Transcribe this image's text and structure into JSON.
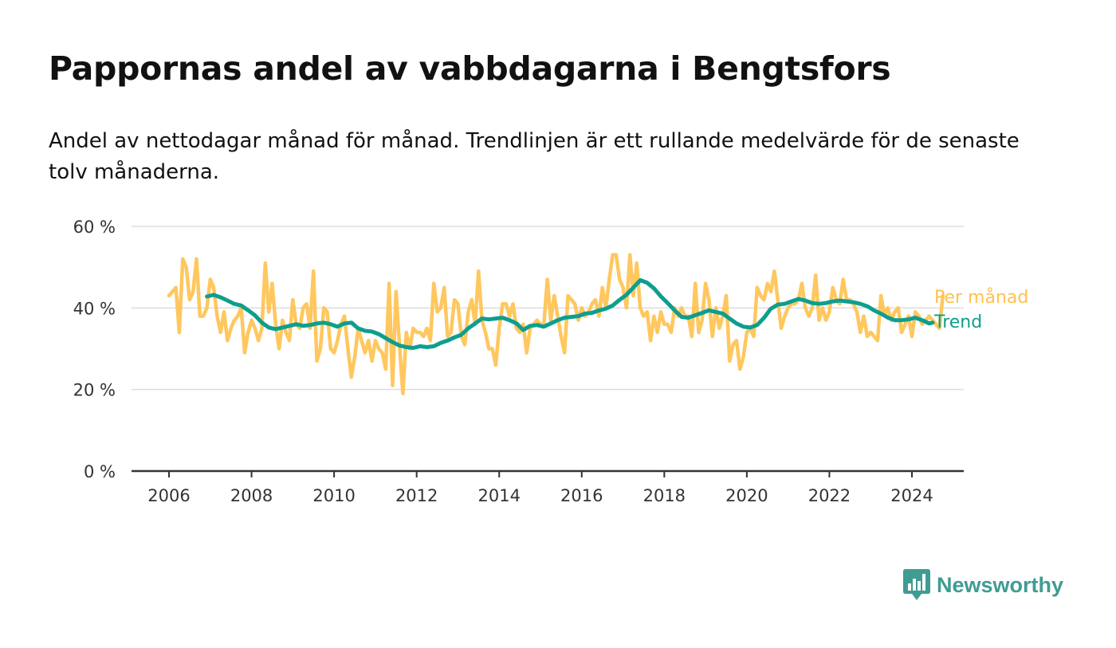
{
  "colors": {
    "monthly": "#FFC14D",
    "trend": "#0E9E8E",
    "grid": "#DDDDDD",
    "axis": "#333333",
    "brand": "#3F9C92"
  },
  "brand": {
    "name": "Newsworthy"
  },
  "chart_data": {
    "type": "line",
    "title": "Pappornas andel av vabbdagarna i Bengtsfors",
    "subtitle": "Andel av nettodagar månad för månad. Trendlinjen är ett rullande medelvärde för de senaste tolv månaderna.",
    "xlim": [
      2006,
      2024.5
    ],
    "ylim": [
      0,
      60
    ],
    "x_ticks": [
      2006,
      2008,
      2010,
      2012,
      2014,
      2016,
      2018,
      2020,
      2022,
      2024
    ],
    "y_ticks": [
      0,
      20,
      40,
      60
    ],
    "y_tick_labels": [
      "0 %",
      "20 %",
      "40 %",
      "60 %"
    ],
    "grid": true,
    "legend": "direct labels at line ends (right)",
    "series": [
      {
        "name": "Per månad",
        "color": "#FFC14D",
        "x_start": 2006.0,
        "x_step": 0.0833333,
        "values": [
          43,
          44,
          45,
          34,
          52,
          50,
          42,
          44,
          52,
          38,
          38,
          40,
          47,
          45,
          38,
          34,
          39,
          32,
          35,
          37,
          38,
          40,
          29,
          34,
          37,
          35,
          32,
          35,
          51,
          39,
          46,
          36,
          30,
          37,
          34,
          32,
          42,
          36,
          35,
          40,
          41,
          35,
          49,
          27,
          30,
          40,
          39,
          30,
          29,
          32,
          36,
          38,
          30,
          23,
          28,
          35,
          32,
          29,
          32,
          27,
          32,
          30,
          29,
          25,
          46,
          21,
          44,
          31,
          19,
          34,
          30,
          35,
          34,
          34,
          33,
          35,
          32,
          46,
          39,
          40,
          45,
          33,
          34,
          42,
          41,
          33,
          31,
          39,
          42,
          36,
          49,
          37,
          34,
          30,
          30,
          26,
          35,
          41,
          41,
          38,
          41,
          35,
          34,
          36,
          29,
          35,
          36,
          37,
          36,
          36,
          47,
          37,
          43,
          38,
          33,
          29,
          43,
          42,
          41,
          37,
          40,
          38,
          39,
          41,
          42,
          38,
          45,
          40,
          47,
          53,
          53,
          47,
          45,
          40,
          53,
          43,
          51,
          40,
          38,
          39,
          32,
          38,
          34,
          39,
          36,
          36,
          34,
          40,
          38,
          40,
          38,
          38,
          33,
          46,
          34,
          37,
          46,
          42,
          33,
          40,
          35,
          38,
          43,
          27,
          31,
          32,
          25,
          28,
          34,
          35,
          33,
          45,
          43,
          42,
          46,
          44,
          49,
          42,
          35,
          38,
          40,
          41,
          41,
          42,
          46,
          40,
          38,
          40,
          48,
          37,
          40,
          37,
          39,
          45,
          42,
          41,
          47,
          42,
          42,
          41,
          39,
          34,
          38,
          33,
          34,
          33,
          32,
          43,
          38,
          40,
          37,
          39,
          40,
          34,
          36,
          38,
          33,
          39,
          38,
          36,
          37,
          38,
          37,
          36,
          35,
          43
        ]
      },
      {
        "name": "Trend",
        "color": "#0E9E8E",
        "points": [
          [
            2006.92,
            42.8
          ],
          [
            2007.08,
            43.2
          ],
          [
            2007.25,
            42.6
          ],
          [
            2007.42,
            41.8
          ],
          [
            2007.58,
            41.0
          ],
          [
            2007.75,
            40.6
          ],
          [
            2007.92,
            39.4
          ],
          [
            2008.08,
            38.2
          ],
          [
            2008.25,
            36.4
          ],
          [
            2008.42,
            35.2
          ],
          [
            2008.58,
            34.8
          ],
          [
            2008.75,
            35.2
          ],
          [
            2008.92,
            35.6
          ],
          [
            2009.08,
            36.0
          ],
          [
            2009.25,
            35.6
          ],
          [
            2009.42,
            35.8
          ],
          [
            2009.58,
            36.2
          ],
          [
            2009.75,
            36.4
          ],
          [
            2009.92,
            36.0
          ],
          [
            2010.08,
            35.4
          ],
          [
            2010.25,
            36.2
          ],
          [
            2010.42,
            36.4
          ],
          [
            2010.58,
            35.0
          ],
          [
            2010.75,
            34.4
          ],
          [
            2010.92,
            34.2
          ],
          [
            2011.08,
            33.6
          ],
          [
            2011.25,
            32.6
          ],
          [
            2011.42,
            31.6
          ],
          [
            2011.58,
            30.8
          ],
          [
            2011.75,
            30.4
          ],
          [
            2011.92,
            30.2
          ],
          [
            2012.08,
            30.6
          ],
          [
            2012.25,
            30.4
          ],
          [
            2012.42,
            30.6
          ],
          [
            2012.58,
            31.4
          ],
          [
            2012.75,
            32.0
          ],
          [
            2012.92,
            32.8
          ],
          [
            2013.08,
            33.4
          ],
          [
            2013.25,
            35.0
          ],
          [
            2013.42,
            36.2
          ],
          [
            2013.58,
            37.4
          ],
          [
            2013.75,
            37.2
          ],
          [
            2013.92,
            37.4
          ],
          [
            2014.08,
            37.6
          ],
          [
            2014.25,
            37.0
          ],
          [
            2014.42,
            36.2
          ],
          [
            2014.58,
            34.6
          ],
          [
            2014.75,
            35.6
          ],
          [
            2014.92,
            35.8
          ],
          [
            2015.08,
            35.4
          ],
          [
            2015.25,
            36.2
          ],
          [
            2015.42,
            37.0
          ],
          [
            2015.58,
            37.6
          ],
          [
            2015.75,
            37.8
          ],
          [
            2015.92,
            38.0
          ],
          [
            2016.08,
            38.6
          ],
          [
            2016.25,
            38.8
          ],
          [
            2016.42,
            39.4
          ],
          [
            2016.58,
            39.8
          ],
          [
            2016.75,
            40.6
          ],
          [
            2016.92,
            42.0
          ],
          [
            2017.08,
            43.2
          ],
          [
            2017.25,
            45.0
          ],
          [
            2017.42,
            46.8
          ],
          [
            2017.58,
            46.2
          ],
          [
            2017.75,
            44.8
          ],
          [
            2017.92,
            42.8
          ],
          [
            2018.08,
            41.2
          ],
          [
            2018.25,
            39.4
          ],
          [
            2018.42,
            37.8
          ],
          [
            2018.58,
            37.6
          ],
          [
            2018.75,
            38.2
          ],
          [
            2018.92,
            38.8
          ],
          [
            2019.08,
            39.4
          ],
          [
            2019.25,
            39.0
          ],
          [
            2019.42,
            38.6
          ],
          [
            2019.58,
            37.4
          ],
          [
            2019.75,
            36.2
          ],
          [
            2019.92,
            35.4
          ],
          [
            2020.08,
            35.2
          ],
          [
            2020.25,
            35.8
          ],
          [
            2020.42,
            37.6
          ],
          [
            2020.58,
            39.8
          ],
          [
            2020.75,
            40.8
          ],
          [
            2020.92,
            41.0
          ],
          [
            2021.08,
            41.6
          ],
          [
            2021.25,
            42.2
          ],
          [
            2021.42,
            41.8
          ],
          [
            2021.58,
            41.2
          ],
          [
            2021.75,
            41.0
          ],
          [
            2021.92,
            41.2
          ],
          [
            2022.08,
            41.6
          ],
          [
            2022.25,
            41.8
          ],
          [
            2022.42,
            41.6
          ],
          [
            2022.58,
            41.4
          ],
          [
            2022.75,
            41.0
          ],
          [
            2022.92,
            40.4
          ],
          [
            2023.08,
            39.4
          ],
          [
            2023.25,
            38.6
          ],
          [
            2023.42,
            37.6
          ],
          [
            2023.58,
            37.0
          ],
          [
            2023.75,
            37.0
          ],
          [
            2023.92,
            37.2
          ],
          [
            2024.08,
            37.6
          ],
          [
            2024.25,
            37.0
          ],
          [
            2024.42,
            36.2
          ],
          [
            2024.5,
            36.4
          ]
        ]
      }
    ]
  }
}
